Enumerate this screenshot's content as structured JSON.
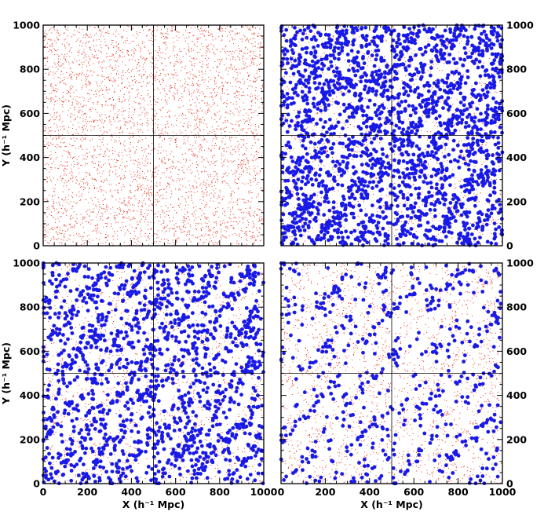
{
  "chart_data": {
    "type": "scatter",
    "layout": "2x2 panels",
    "xlabel": "X (h⁻¹ Mpc)",
    "ylabel": "Y (h⁻¹ Mpc)",
    "xlim": [
      0,
      1000
    ],
    "ylim": [
      0,
      1000
    ],
    "major_ticks": [
      0,
      200,
      400,
      600,
      800,
      1000
    ],
    "minor_tick_step": 50,
    "divider_lines": {
      "x": 500,
      "y": 500
    },
    "colors": {
      "field_points": "#e8301a",
      "selected_points": "#1a1ae6"
    },
    "panels": [
      {
        "name": "top-left",
        "field_points_count": 4200,
        "selected_points_count": 0,
        "x_tick_labels": false,
        "y_tick_labels": "left",
        "show_xlabel": false,
        "show_ylabel": true
      },
      {
        "name": "top-right",
        "field_points_count": 1500,
        "selected_points_count": 2300,
        "x_tick_labels": false,
        "y_tick_labels": "right",
        "show_xlabel": false,
        "show_ylabel": false
      },
      {
        "name": "bottom-left",
        "field_points_count": 1800,
        "selected_points_count": 1600,
        "x_tick_labels": true,
        "y_tick_labels": "left",
        "show_xlabel": true,
        "show_ylabel": true
      },
      {
        "name": "bottom-right",
        "field_points_count": 2200,
        "selected_points_count": 600,
        "x_tick_labels": true,
        "y_tick_labels": "right",
        "show_xlabel": true,
        "show_ylabel": false
      }
    ]
  }
}
